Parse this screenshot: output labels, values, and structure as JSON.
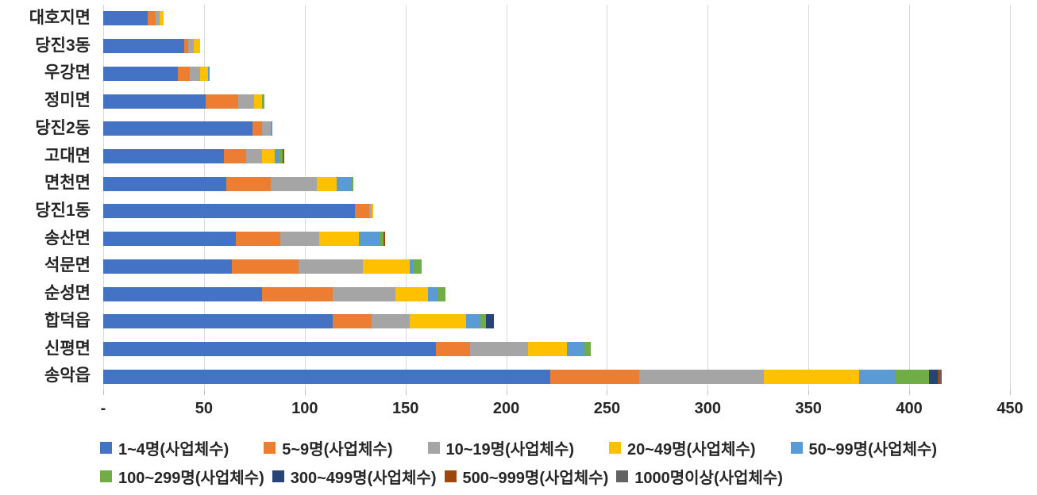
{
  "chart_data": {
    "type": "bar",
    "orientation": "horizontal",
    "stacked": true,
    "title": "",
    "xlabel": "",
    "ylabel": "",
    "xlim": [
      0,
      450
    ],
    "x_tick_step": 50,
    "x_tick_labels": [
      "-",
      "50",
      "100",
      "150",
      "200",
      "250",
      "300",
      "350",
      "400",
      "450"
    ],
    "grid": true,
    "legend_position": "bottom",
    "categories": [
      "대호지면",
      "당진3동",
      "우강면",
      "정미면",
      "당진2동",
      "고대면",
      "면천면",
      "당진1동",
      "송산면",
      "석문면",
      "순성면",
      "합덕읍",
      "신평면",
      "송악읍"
    ],
    "series": [
      {
        "name": "1~4명(사업체수)",
        "color": "#4472C4",
        "values": [
          22,
          40,
          37,
          51,
          74,
          60,
          61,
          125,
          66,
          64,
          79,
          114,
          165,
          222
        ]
      },
      {
        "name": "5~9명(사업체수)",
        "color": "#ED7D31",
        "values": [
          4,
          2,
          6,
          16,
          5,
          11,
          22,
          7,
          22,
          33,
          35,
          19,
          17,
          44
        ]
      },
      {
        "name": "10~19명(사업체수)",
        "color": "#A5A5A5",
        "values": [
          2,
          3,
          5,
          8,
          4,
          8,
          23,
          1,
          19,
          32,
          31,
          19,
          29,
          62
        ]
      },
      {
        "name": "20~49명(사업체수)",
        "color": "#FFC000",
        "values": [
          2,
          3,
          4,
          4,
          0,
          6,
          10,
          1,
          20,
          23,
          16,
          28,
          19,
          47
        ]
      },
      {
        "name": "50~99명(사업체수)",
        "color": "#5B9BD5",
        "values": [
          0,
          0,
          1,
          0,
          1,
          2,
          7,
          0,
          10,
          2,
          5,
          7,
          9,
          18
        ]
      },
      {
        "name": "100~299명(사업체수)",
        "color": "#70AD47",
        "values": [
          0,
          0,
          0,
          1,
          0,
          2,
          1,
          0,
          2,
          4,
          4,
          3,
          3,
          17
        ]
      },
      {
        "name": "300~499명(사업체수)",
        "color": "#264478",
        "values": [
          0,
          0,
          0,
          0,
          0,
          0,
          0,
          0,
          0,
          0,
          0,
          4,
          0,
          4
        ]
      },
      {
        "name": "500~999명(사업체수)",
        "color": "#9E480E",
        "values": [
          0,
          0,
          0,
          0,
          0,
          1,
          0,
          0,
          1,
          0,
          0,
          0,
          0,
          1
        ]
      },
      {
        "name": "1000명이상(사업체수)",
        "color": "#636363",
        "values": [
          0,
          0,
          0,
          0,
          0,
          0,
          0,
          0,
          0,
          0,
          0,
          0,
          0,
          1
        ]
      }
    ],
    "legend_rows": [
      5,
      4
    ],
    "colors": {
      "gridline": "#d9d9d9",
      "tick": "#bfbfbf",
      "text": "#262626",
      "background": "#ffffff"
    }
  }
}
